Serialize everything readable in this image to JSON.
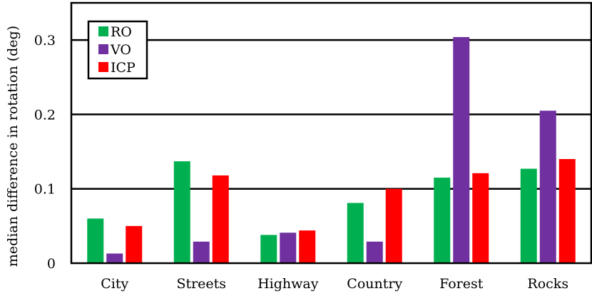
{
  "chart_data": {
    "type": "bar",
    "title": "",
    "xlabel": "",
    "ylabel": "median difference in rotation (deg)",
    "categories": [
      "City",
      "Streets",
      "Highway",
      "Country",
      "Forest",
      "Rocks"
    ],
    "series": [
      {
        "name": "RO",
        "color": "#00b050",
        "values": [
          0.06,
          0.137,
          0.038,
          0.081,
          0.115,
          0.127
        ]
      },
      {
        "name": "VO",
        "color": "#7030a0",
        "values": [
          0.013,
          0.029,
          0.041,
          0.029,
          0.304,
          0.205
        ]
      },
      {
        "name": "ICP",
        "color": "#ff0000",
        "values": [
          0.05,
          0.118,
          0.044,
          0.1,
          0.121,
          0.14
        ]
      }
    ],
    "ylim": [
      0,
      0.35
    ],
    "yticks": [
      {
        "value": 0,
        "label": "0"
      },
      {
        "value": 0.1,
        "label": "0.1"
      },
      {
        "value": 0.2,
        "label": "0.2"
      },
      {
        "value": 0.3,
        "label": "0.3"
      }
    ],
    "grid": "horizontal",
    "legend_position": "top-left"
  }
}
